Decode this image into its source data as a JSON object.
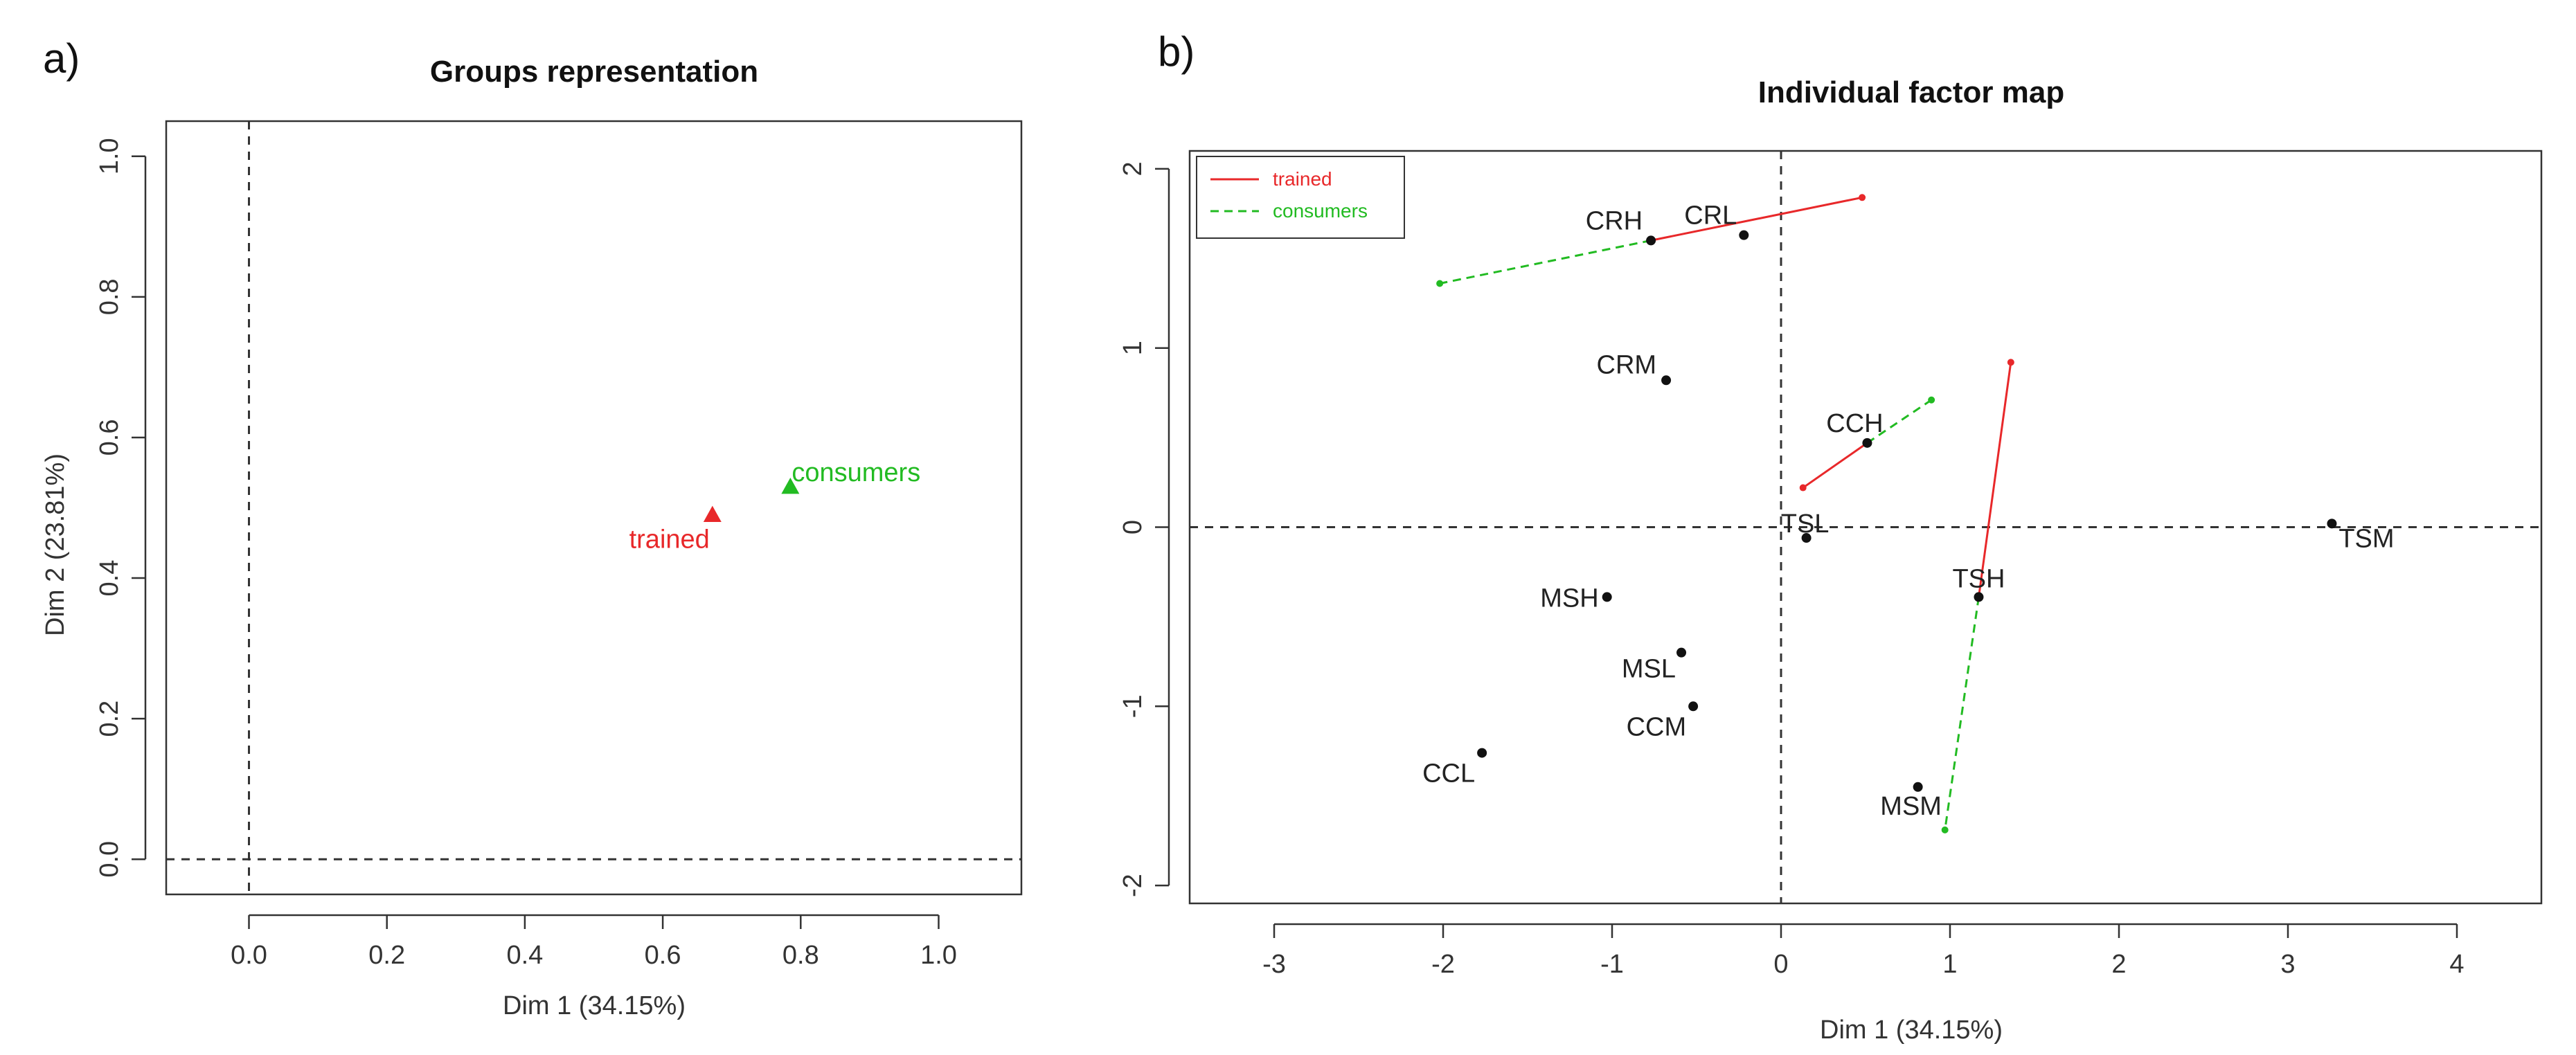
{
  "panel_labels": [
    "a)",
    "b)"
  ],
  "chart_data": [
    {
      "type": "scatter",
      "title": "Groups representation",
      "xlabel": "Dim 1 (34.15%)",
      "ylabel": "Dim 2 (23.81%)",
      "xlim": [
        -0.12,
        1.12
      ],
      "ylim": [
        -0.05,
        1.05
      ],
      "xticks": [
        0.0,
        0.2,
        0.4,
        0.6,
        0.8,
        1.0
      ],
      "xtick_labels": [
        "0.0",
        "0.2",
        "0.4",
        "0.6",
        "0.8",
        "1.0"
      ],
      "yticks": [
        0.0,
        0.2,
        0.4,
        0.6,
        0.8,
        1.0
      ],
      "ytick_labels": [
        "0.0",
        "0.2",
        "0.4",
        "0.6",
        "0.8",
        "1.0"
      ],
      "reference_lines": {
        "x": 0,
        "y": 0
      },
      "points": [
        {
          "label": "trained",
          "x": 0.672,
          "y": 0.49,
          "color": "#e8282a",
          "marker": "triangle"
        },
        {
          "label": "consumers",
          "x": 0.785,
          "y": 0.53,
          "color": "#22bb22",
          "marker": "triangle"
        }
      ]
    },
    {
      "type": "scatter",
      "title": "Individual factor map",
      "xlabel": "Dim 1 (34.15%)",
      "ylabel": "",
      "xlim": [
        -3.5,
        4.5
      ],
      "ylim": [
        -2.1,
        2.1
      ],
      "xticks": [
        -3,
        -2,
        -1,
        0,
        1,
        2,
        3,
        4
      ],
      "xtick_labels": [
        "-3",
        "-2",
        "-1",
        "0",
        "1",
        "2",
        "3",
        "4"
      ],
      "yticks": [
        -2,
        -1,
        0,
        1,
        2
      ],
      "ytick_labels": [
        "-2",
        "-1",
        "0",
        "1",
        "2"
      ],
      "reference_lines": {
        "x": 0,
        "y": 0
      },
      "legend": {
        "position": "top-left",
        "entries": [
          {
            "name": "trained",
            "color": "#e8282a",
            "dash": "solid"
          },
          {
            "name": "consumers",
            "color": "#22bb22",
            "dash": "dashed"
          }
        ]
      },
      "points": [
        {
          "label": "CRH",
          "x": -0.77,
          "y": 1.6
        },
        {
          "label": "CRL",
          "x": -0.22,
          "y": 1.63
        },
        {
          "label": "CRM",
          "x": -0.68,
          "y": 0.82
        },
        {
          "label": "CCH",
          "x": 0.51,
          "y": 0.47
        },
        {
          "label": "TSL",
          "x": 0.15,
          "y": -0.06
        },
        {
          "label": "TSM",
          "x": 3.26,
          "y": 0.02
        },
        {
          "label": "TSH",
          "x": 1.17,
          "y": -0.39
        },
        {
          "label": "MSH",
          "x": -1.03,
          "y": -0.39
        },
        {
          "label": "MSL",
          "x": -0.59,
          "y": -0.7
        },
        {
          "label": "CCM",
          "x": -0.52,
          "y": -1.0
        },
        {
          "label": "CCL",
          "x": -1.77,
          "y": -1.26
        },
        {
          "label": "MSM",
          "x": 0.81,
          "y": -1.45
        }
      ],
      "partial_segments": [
        {
          "group": "trained",
          "color": "#e8282a",
          "from": [
            -0.77,
            1.6
          ],
          "to": [
            0.48,
            1.84
          ]
        },
        {
          "group": "consumers",
          "color": "#22bb22",
          "from": [
            -0.77,
            1.6
          ],
          "to": [
            -2.02,
            1.36
          ]
        },
        {
          "group": "trained",
          "color": "#e8282a",
          "from": [
            0.51,
            0.47
          ],
          "to": [
            0.13,
            0.22
          ]
        },
        {
          "group": "consumers",
          "color": "#22bb22",
          "from": [
            0.51,
            0.47
          ],
          "to": [
            0.89,
            0.71
          ]
        },
        {
          "group": "trained",
          "color": "#e8282a",
          "from": [
            1.17,
            -0.39
          ],
          "to": [
            1.36,
            0.92
          ]
        },
        {
          "group": "consumers",
          "color": "#22bb22",
          "from": [
            1.17,
            -0.39
          ],
          "to": [
            0.97,
            -1.69
          ]
        }
      ]
    }
  ]
}
